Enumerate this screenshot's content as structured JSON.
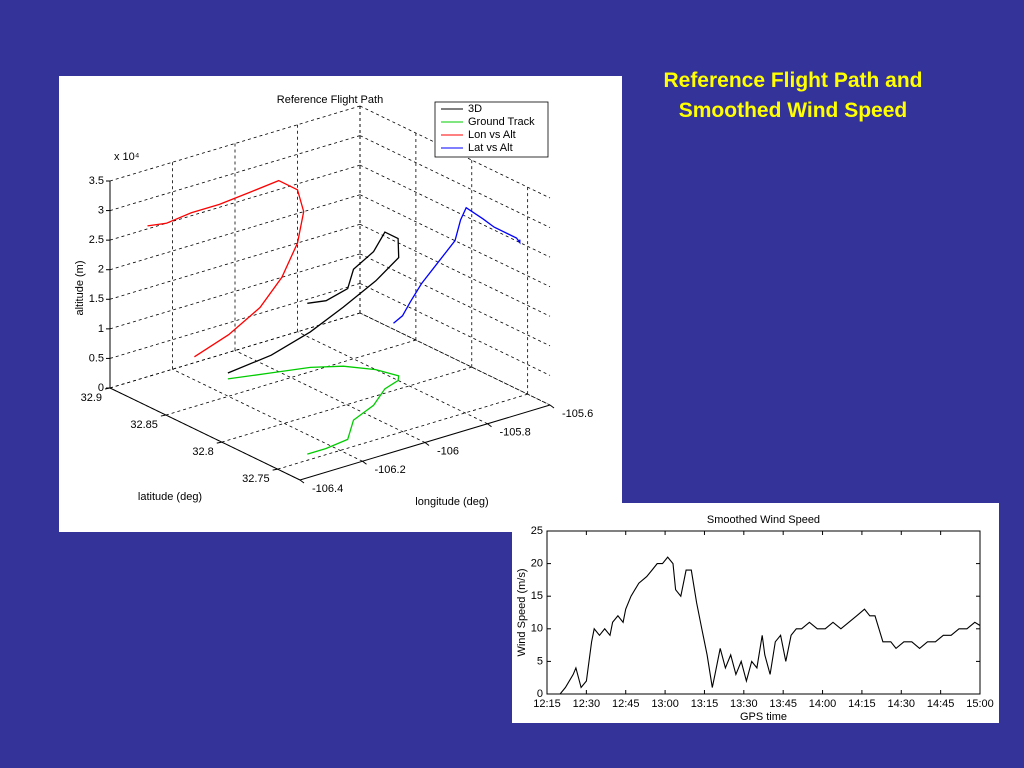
{
  "slide_title": "Reference Flight Path and Smoothed Wind Speed",
  "chart_data": [
    {
      "type": "line3d",
      "title": "Reference Flight Path",
      "xlabel": "longitude (deg)",
      "ylabel": "latitude (deg)",
      "zlabel": "altitude (m)",
      "z_multiplier": "x 10⁴",
      "xlim": [
        -106.4,
        -105.6
      ],
      "ylim": [
        32.73,
        32.9
      ],
      "zlim": [
        0,
        35000
      ],
      "xticks": [
        -106.4,
        -106.2,
        -106,
        -105.8,
        -105.6
      ],
      "yticks": [
        32.75,
        32.8,
        32.85,
        32.9
      ],
      "zticks": [
        0,
        {
          "value": 5000,
          "label": "0.5"
        },
        {
          "value": 10000,
          "label": "1"
        },
        {
          "value": 15000,
          "label": "1.5"
        },
        {
          "value": 20000,
          "label": "2"
        },
        {
          "value": 25000,
          "label": "2.5"
        },
        {
          "value": 30000,
          "label": "3"
        },
        {
          "value": 35000,
          "label": "3.5"
        }
      ],
      "grid": true,
      "legend": "upper right",
      "x": [
        -106.13,
        -106.02,
        -105.92,
        -105.85,
        -105.8,
        -105.78,
        -105.8,
        -105.86,
        -105.95,
        -106.05,
        -106.14,
        -106.22,
        -106.28
      ],
      "y": [
        32.87,
        32.862,
        32.855,
        32.845,
        32.83,
        32.815,
        32.81,
        32.805,
        32.79,
        32.78,
        32.76,
        32.757,
        32.757
      ],
      "z": [
        1000,
        3000,
        6000,
        10000,
        15000,
        20000,
        24000,
        26500,
        26000,
        25500,
        25500,
        25000,
        25500
      ],
      "series": [
        {
          "name": "3D",
          "color": "#000000",
          "projection": "3d"
        },
        {
          "name": "Ground Track",
          "color": "#00cc00",
          "projection": "ground"
        },
        {
          "name": "Lon vs Alt",
          "color": "#ff0000",
          "projection": "lon-alt"
        },
        {
          "name": "Lat vs Alt",
          "color": "#0000ff",
          "projection": "lat-alt"
        }
      ]
    },
    {
      "type": "line",
      "title": "Smoothed Wind Speed",
      "xlabel": "GPS time",
      "ylabel": "Wind Speed (m/s)",
      "xlim": [
        735,
        900
      ],
      "ylim": [
        0,
        25
      ],
      "xticks": [
        {
          "value": 735,
          "label": "12:15"
        },
        {
          "value": 750,
          "label": "12:30"
        },
        {
          "value": 765,
          "label": "12:45"
        },
        {
          "value": 780,
          "label": "13:00"
        },
        {
          "value": 795,
          "label": "13:15"
        },
        {
          "value": 810,
          "label": "13:30"
        },
        {
          "value": 825,
          "label": "13:45"
        },
        {
          "value": 840,
          "label": "14:00"
        },
        {
          "value": 855,
          "label": "14:15"
        },
        {
          "value": 870,
          "label": "14:30"
        },
        {
          "value": 885,
          "label": "14:45"
        },
        {
          "value": 900,
          "label": "15:00"
        }
      ],
      "yticks": [
        0,
        5,
        10,
        15,
        20,
        25
      ],
      "color": "#000000",
      "x": [
        735,
        740,
        742,
        745,
        746,
        748,
        750,
        752,
        753,
        755,
        757,
        759,
        760,
        762,
        764,
        765,
        767,
        770,
        773,
        775,
        777,
        779,
        781,
        783,
        784,
        786,
        788,
        790,
        792,
        794,
        796,
        798,
        799,
        801,
        803,
        805,
        807,
        809,
        811,
        813,
        815,
        817,
        818,
        820,
        822,
        824,
        826,
        828,
        830,
        832,
        835,
        838,
        841,
        844,
        847,
        850,
        853,
        856,
        858,
        860,
        863,
        866,
        868,
        871,
        874,
        877,
        880,
        883,
        886,
        889,
        892,
        895,
        898,
        900
      ],
      "values": [
        0,
        0,
        1,
        3,
        4,
        1,
        2,
        8,
        10,
        9,
        10,
        9,
        11,
        12,
        11,
        13,
        15,
        17,
        18,
        19,
        20,
        20,
        21,
        20,
        16,
        15,
        19,
        19,
        14,
        10,
        6,
        1,
        3,
        7,
        4,
        6,
        3,
        5,
        2,
        5,
        4,
        9,
        6,
        3,
        8,
        9,
        5,
        9,
        10,
        10,
        11,
        10,
        10,
        11,
        10,
        11,
        12,
        13,
        12,
        12,
        8,
        8,
        7,
        8,
        8,
        7,
        8,
        8,
        9,
        9,
        10,
        10,
        11,
        10.5
      ]
    }
  ]
}
